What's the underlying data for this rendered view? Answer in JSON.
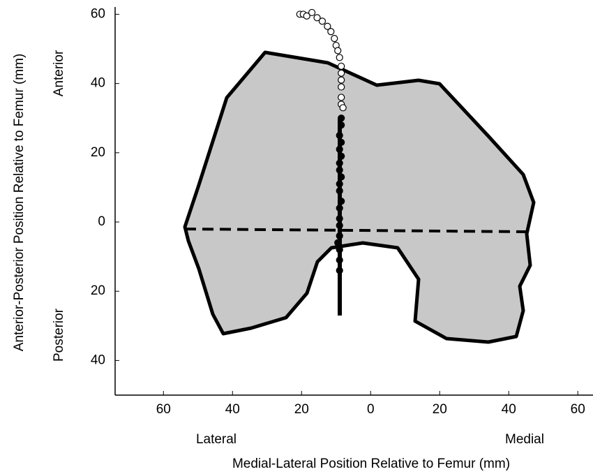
{
  "chart_data": {
    "type": "scatter",
    "x_label": "Medial-Lateral Position Relative to Femur (mm)",
    "y_label": "Anterior-Posterior Position Relative to Femur (mm)",
    "annotations": {
      "anterior": "Anterior",
      "posterior": "Posterior",
      "lateral": "Lateral",
      "medial": "Medial"
    },
    "xlim": [
      -74,
      64
    ],
    "ylim": [
      -50,
      62
    ],
    "xticks": [
      {
        "value": -60,
        "label": "60"
      },
      {
        "value": -40,
        "label": "40"
      },
      {
        "value": -20,
        "label": "20"
      },
      0,
      20,
      40,
      60
    ],
    "yticks": [
      60,
      40,
      20,
      0,
      {
        "value": -20,
        "label": "20"
      },
      {
        "value": -40,
        "label": "40"
      }
    ],
    "series": [
      {
        "color": "#ffffff",
        "x": [
          -20.5,
          -19.5,
          -18.5,
          -17,
          -15.5,
          -14,
          -12.5,
          -11.5,
          -10.5,
          -10,
          -9.5,
          -9,
          -8.5,
          -8.5,
          -8.5,
          -8.5,
          -8.5,
          -8.5,
          -8
        ],
        "values": [
          60,
          60,
          59.5,
          60.5,
          59,
          58,
          56.5,
          55,
          53,
          51,
          49.5,
          47.5,
          45,
          43,
          41,
          39,
          36,
          34,
          33
        ]
      },
      {
        "color": "#000000",
        "x": [
          -8.5,
          -8.5,
          -9,
          -8.5,
          -9,
          -8.5,
          -9,
          -9,
          -8.5,
          -9,
          -9,
          -8.5,
          -9,
          -9,
          -9,
          -9,
          -9.5,
          -9,
          -9,
          -9
        ],
        "values": [
          30,
          28,
          25,
          23,
          21,
          19,
          17,
          15,
          13,
          11,
          9,
          6,
          4,
          1,
          -1,
          -4,
          -6,
          -8,
          -11,
          -14
        ]
      }
    ]
  }
}
